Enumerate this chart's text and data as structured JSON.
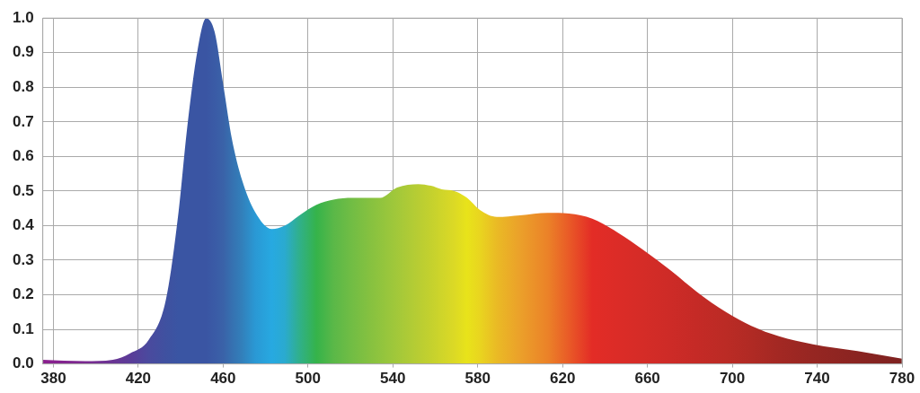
{
  "chart_data": {
    "type": "area",
    "xlim": [
      375,
      780
    ],
    "ylim": [
      0,
      1
    ],
    "xticks": [
      380,
      420,
      460,
      500,
      540,
      580,
      620,
      660,
      700,
      740,
      780
    ],
    "yticks": [
      {
        "value": 0,
        "label": "0.0"
      },
      0.1,
      0.2,
      0.3,
      0.4,
      0.5,
      0.6,
      0.7,
      0.8,
      0.9,
      {
        "value": 1,
        "label": "1.0"
      }
    ],
    "grid": true,
    "series": [
      {
        "x": [
          375,
          395,
          408,
          416,
          425,
          433,
          439,
          443,
          448,
          452,
          456,
          460,
          464,
          469,
          475,
          483,
          489,
          496,
          504,
          512,
          521,
          529,
          534,
          542,
          552,
          558,
          563,
          569,
          575,
          581,
          589,
          600,
          613,
          623,
          634,
          646,
          658,
          671,
          683,
          697,
          709,
          722,
          738,
          759,
          780
        ],
        "values": [
          0.012,
          0.008,
          0.012,
          0.03,
          0.07,
          0.185,
          0.44,
          0.68,
          0.91,
          1.0,
          0.96,
          0.81,
          0.655,
          0.53,
          0.44,
          0.39,
          0.4,
          0.43,
          0.46,
          0.475,
          0.48,
          0.48,
          0.48,
          0.51,
          0.52,
          0.515,
          0.505,
          0.5,
          0.48,
          0.445,
          0.425,
          0.43,
          0.437,
          0.435,
          0.42,
          0.38,
          0.33,
          0.27,
          0.21,
          0.15,
          0.11,
          0.08,
          0.057,
          0.037,
          0.015
        ],
        "colors": [
          "#8b1f8e",
          "#7a2a90",
          "#6a3594",
          "#5b3c98",
          "#4a4a9e",
          "#3f51a0",
          "#3a55a3",
          "#3a55a3",
          "#3a55a3",
          "#3a55a3",
          "#3a5ba6",
          "#3a62a8",
          "#3670b0",
          "#3280bb",
          "#2a98d4",
          "#27a9e1",
          "#2aaad0",
          "#30b08a",
          "#35b34a",
          "#5ab848",
          "#72bd44",
          "#85c140",
          "#90c43e",
          "#a2c83a",
          "#b8cd33",
          "#c4d12e",
          "#cfd52a",
          "#dcd925",
          "#e8e31a",
          "#e9d51f",
          "#eaba25",
          "#eba02a",
          "#eb8228",
          "#e95a27",
          "#e32c26",
          "#dc2c27",
          "#d52c27",
          "#cd2b27",
          "#c52a26",
          "#bb2b25",
          "#b02a24",
          "#a32823",
          "#962622",
          "#8a2421",
          "#7e2220"
        ]
      }
    ]
  }
}
